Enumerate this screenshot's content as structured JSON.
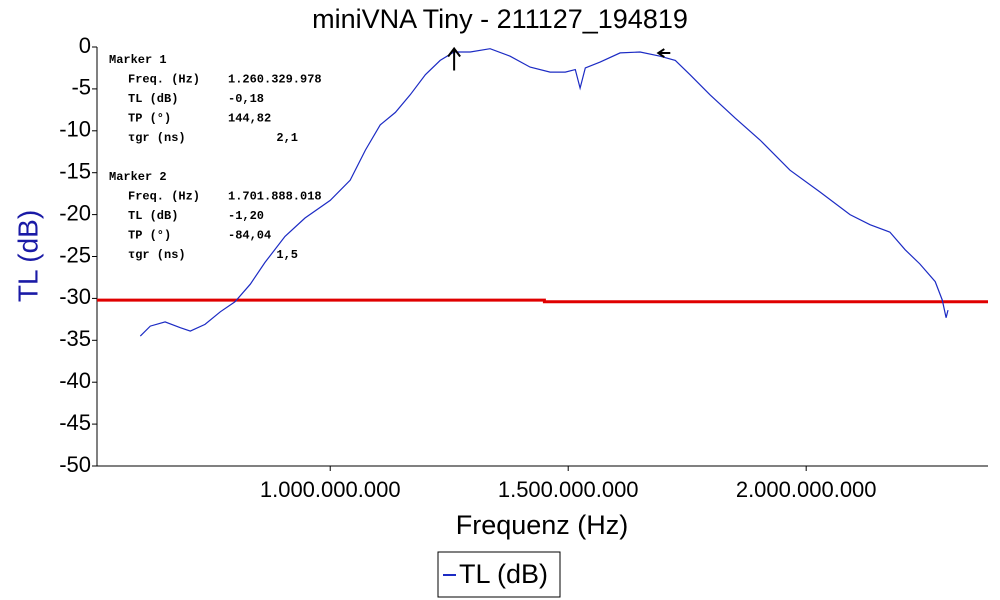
{
  "chart_data": {
    "type": "line",
    "title": "miniVNA Tiny - 211127_194819",
    "x_label": "Frequenz (Hz)",
    "y_label": "TL (dB)",
    "y_label_color": "#1a1aa6",
    "x": [
      601000000,
      622000000,
      653000000,
      685000000,
      706000000,
      737000000,
      769000000,
      800000000,
      832000000,
      863000000,
      905000000,
      947000000,
      1000000000,
      1042000000,
      1074000000,
      1105000000,
      1137000000,
      1168000000,
      1200000000,
      1231000000,
      1260000000,
      1294000000,
      1336000000,
      1378000000,
      1420000000,
      1462000000,
      1494000000,
      1515000000,
      1525000000,
      1536000000,
      1567000000,
      1609000000,
      1651000000,
      1693000000,
      1725000000,
      1756000000,
      1798000000,
      1851000000,
      1903000000,
      1966000000,
      2029000000,
      2092000000,
      2134000000,
      2176000000,
      2208000000,
      2239000000,
      2271000000,
      2286000000,
      2294000000,
      2298000000
    ],
    "series": [
      {
        "name": "TL (dB)",
        "color": "#1c2bc4",
        "values": [
          -34.5,
          -33.3,
          -32.8,
          -33.5,
          -33.9,
          -33.1,
          -31.6,
          -30.4,
          -28.3,
          -25.7,
          -22.6,
          -20.4,
          -18.3,
          -15.9,
          -12.3,
          -9.3,
          -7.8,
          -5.7,
          -3.3,
          -1.6,
          -0.6,
          -0.6,
          -0.2,
          -1.1,
          -2.4,
          -3.0,
          -3.0,
          -2.7,
          -4.9,
          -2.5,
          -1.8,
          -0.7,
          -0.6,
          -1.1,
          -1.6,
          -3.3,
          -5.7,
          -8.5,
          -11.1,
          -14.7,
          -17.3,
          -20.0,
          -21.2,
          -22.1,
          -24.2,
          -25.9,
          -28.0,
          -30.2,
          -32.3,
          -31.4
        ]
      }
    ],
    "reference_line": {
      "color": "#e00000",
      "x": [
        510000000,
        1450000000,
        1450000000,
        2382000000
      ],
      "values": [
        -30.2,
        -30.2,
        -30.4,
        -30.4
      ]
    },
    "xlim": [
      510000000,
      2382000000
    ],
    "ylim": [
      -50,
      0
    ],
    "xticks": [
      {
        "value": 1000000000,
        "label": "1.000.000.000"
      },
      {
        "value": 1500000000,
        "label": "1.500.000.000"
      },
      {
        "value": 2000000000,
        "label": "2.000.000.000"
      }
    ],
    "yticks": [
      0,
      -5,
      -10,
      -15,
      -20,
      -25,
      -30,
      -35,
      -40,
      -45,
      -50
    ],
    "grid": false,
    "legend": "bottom",
    "markers": [
      {
        "name": "Marker 1",
        "freq": {
          "caption": "Freq. (Hz)",
          "value": 1260329978,
          "label": "1.260.329.978"
        },
        "tl": {
          "caption": "TL (dB)",
          "value": -0.18,
          "label": "-0,18"
        },
        "tp": {
          "caption": "TP (°)",
          "value": 144.82,
          "label": "144,82"
        },
        "tgr": {
          "caption": "τgr (ns)",
          "value": 2.1,
          "label": "2,1"
        }
      },
      {
        "name": "Marker 2",
        "freq": {
          "caption": "Freq. (Hz)",
          "value": 1701888018,
          "label": "1.701.888.018"
        },
        "tl": {
          "caption": "TL (dB)",
          "value": -1.2,
          "label": "-1,20"
        },
        "tp": {
          "caption": "TP (°)",
          "value": -84.04,
          "label": "-84,04"
        },
        "tgr": {
          "caption": "τgr (ns)",
          "value": 1.5,
          "label": "1,5"
        }
      }
    ]
  }
}
